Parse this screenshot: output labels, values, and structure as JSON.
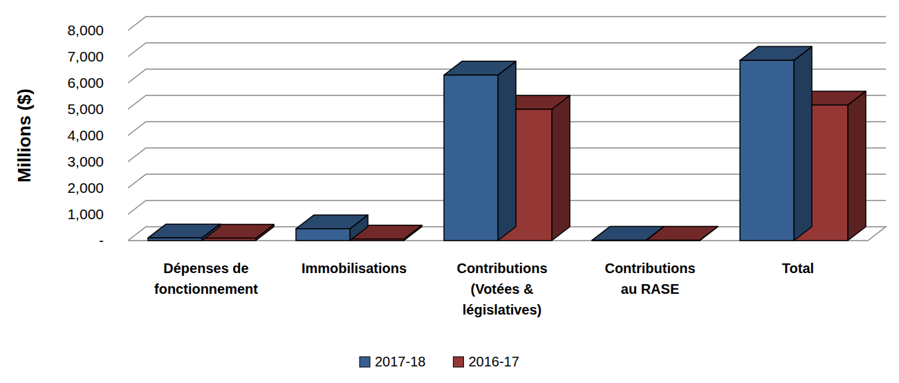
{
  "chart_data": {
    "type": "bar",
    "y_label": "Millions ($)",
    "categories": [
      "Dépenses de fonctionnement",
      "Immobilisations",
      "Contributions (Votées & législatives)",
      "Contributions au RASE",
      "Total"
    ],
    "series": [
      {
        "name": "2017-18",
        "color": "#376092",
        "values": [
          100,
          450,
          6300,
          10,
          6860
        ]
      },
      {
        "name": "2016-17",
        "color": "#953735",
        "values": [
          90,
          60,
          5000,
          10,
          5160
        ]
      }
    ],
    "ylim": [
      0,
      8000
    ],
    "yticks": [
      {
        "value": 0,
        "label": "-"
      },
      {
        "value": 1000,
        "label": "1,000"
      },
      {
        "value": 2000,
        "label": "2,000"
      },
      {
        "value": 3000,
        "label": "3,000"
      },
      {
        "value": 4000,
        "label": "4,000"
      },
      {
        "value": 5000,
        "label": "5,000"
      },
      {
        "value": 6000,
        "label": "6,000"
      },
      {
        "value": 7000,
        "label": "7,000"
      },
      {
        "value": 8000,
        "label": "8,000"
      }
    ],
    "grid": true,
    "legend": "bottom"
  }
}
